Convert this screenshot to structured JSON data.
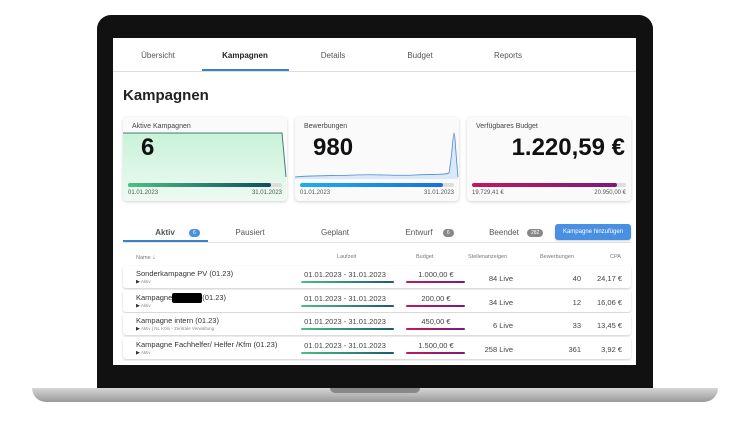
{
  "nav": {
    "tabs": [
      "Übersicht",
      "Kampagnen",
      "Details",
      "Budget",
      "Reports"
    ],
    "active": "Kampagnen"
  },
  "page_title": "Kampagnen",
  "cards": [
    {
      "label": "Aktive Kampagnen",
      "value": "6",
      "progress": 0.93,
      "start": "01.01.2023",
      "end": "31.01.2023"
    },
    {
      "label": "Bewerbungen",
      "value": "980",
      "progress": 0.93,
      "start": "01.01.2023",
      "end": "31.01.2023"
    },
    {
      "label": "Verfügbares Budget",
      "value": "1.220,59 €",
      "progress": 0.94,
      "start": "19.729,41 €",
      "end": "20.950,00 €"
    }
  ],
  "status_tabs": [
    {
      "label": "Aktiv",
      "badge": "6"
    },
    {
      "label": "Pausiert"
    },
    {
      "label": "Geplant"
    },
    {
      "label": "Entwurf",
      "badge": "6"
    },
    {
      "label": "Beendet",
      "badge": "282"
    }
  ],
  "add_button": "Kampagne hinzufügen",
  "table": {
    "headers": [
      "Name",
      "Laufzeit",
      "Budget",
      "Stellenanzeigen",
      "Bewerbungen",
      "CPA"
    ],
    "rows": [
      {
        "name": "Sonderkampagne PV (01.23)",
        "status": "Aktiv",
        "laufzeit": "01.01.2023 - 31.01.2023",
        "budget": "1.000,00 €",
        "stellen": "84 Live",
        "bewerbungen": "40",
        "cpa": "24,17 €"
      },
      {
        "name_pre": "Kampagne",
        "name_post": "(01.23)",
        "status": "Aktiv",
        "laufzeit": "01.01.2023 - 31.01.2023",
        "budget": "200,00 €",
        "stellen": "34 Live",
        "bewerbungen": "12",
        "cpa": "16,06 €"
      },
      {
        "name": "Kampagne intern (01.23)",
        "status": "Aktiv | NL Köln - Zentrale Verwaltung",
        "laufzeit": "01.01.2023 - 31.01.2023",
        "budget": "450,00 €",
        "stellen": "6 Live",
        "bewerbungen": "33",
        "cpa": "13,45 €"
      },
      {
        "name": "Kampagne Fachhelfer/ Helfer /Kfm (01.23)",
        "status": "Aktiv",
        "laufzeit": "01.01.2023 - 31.01.2023",
        "budget": "1.500,00 €",
        "stellen": "258 Live",
        "bewerbungen": "361",
        "cpa": "3,92 €"
      }
    ]
  }
}
